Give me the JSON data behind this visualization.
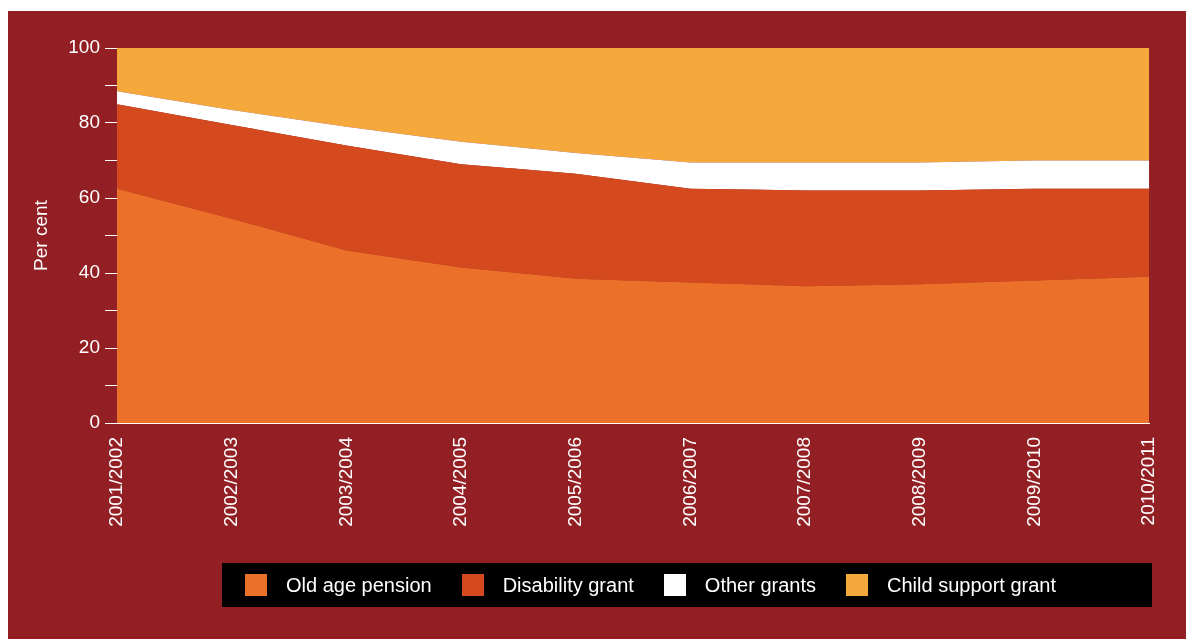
{
  "chart_data": {
    "type": "area",
    "stacked": true,
    "ylabel": "Per cent",
    "categories": [
      "2001/2002",
      "2002/2003",
      "2003/2004",
      "2004/2005",
      "2005/2006",
      "2006/2007",
      "2007/2008",
      "2008/2009",
      "2009/2010",
      "2010/2011"
    ],
    "series": [
      {
        "name": "Old age pension",
        "color": "#eb7029",
        "values": [
          62.5,
          54.5,
          46,
          41.5,
          38.5,
          37.5,
          36.5,
          37,
          38,
          39
        ]
      },
      {
        "name": "Disability grant",
        "color": "#d4491d",
        "values": [
          22.5,
          25,
          28,
          27.5,
          28,
          25,
          25.5,
          25,
          24.5,
          23.5
        ]
      },
      {
        "name": "Other grants",
        "color": "#ffffff",
        "values": [
          3.5,
          4,
          5,
          6,
          5.5,
          7,
          7.5,
          7.5,
          7.5,
          7.5
        ]
      },
      {
        "name": "Child support grant",
        "color": "#f5a93c",
        "values": [
          11.5,
          16.5,
          21,
          25,
          28,
          30.5,
          30.5,
          30.5,
          30,
          30
        ]
      }
    ],
    "ylim": [
      0,
      100
    ],
    "yticks": [
      0,
      {
        "value": 10,
        "label": null
      },
      20,
      {
        "value": 30,
        "label": null
      },
      40,
      {
        "value": 50,
        "label": null
      },
      60,
      {
        "value": 70,
        "label": null
      },
      80,
      {
        "value": 90,
        "label": null
      },
      100
    ],
    "legend": "bottom"
  }
}
